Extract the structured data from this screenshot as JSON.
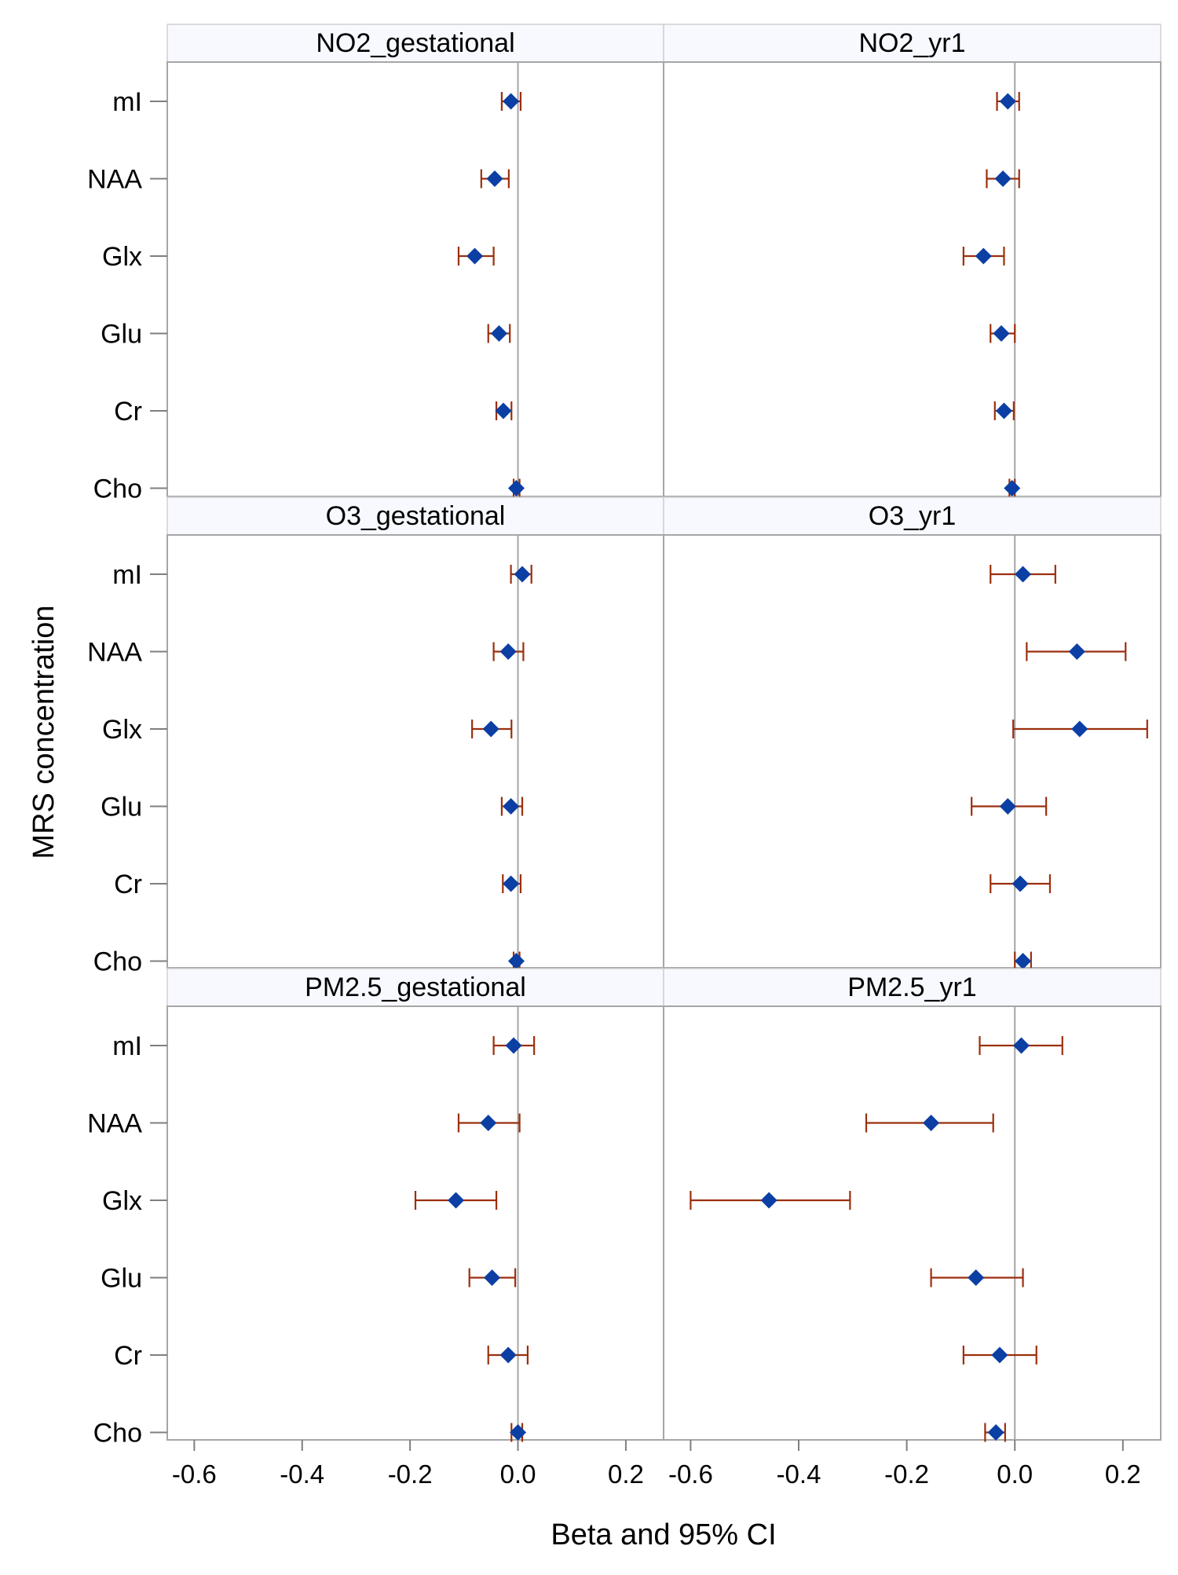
{
  "chart_data": {
    "type": "forest",
    "xlabel": "Beta and 95% CI",
    "ylabel": "MRS concentration",
    "categories": [
      "mI",
      "NAA",
      "Glx",
      "Glu",
      "Cr",
      "Cho"
    ],
    "xlim": [
      -0.65,
      0.27
    ],
    "xticks": [
      -0.6,
      -0.4,
      -0.2,
      0.0,
      0.2
    ],
    "xtick_labels": [
      "-0.6",
      "-0.4",
      "-0.2",
      "0.0",
      "0.2"
    ],
    "reference_line": 0.0,
    "colors": {
      "point": "#0b3fa3",
      "ci": "#9b2f0d",
      "strip": "#f7f9ff",
      "frame": "#a6a6a6",
      "refline": "#a6a6a6"
    },
    "panels": [
      {
        "title": "NO2_gestational",
        "estimates": [
          -0.013,
          -0.043,
          -0.08,
          -0.035,
          -0.027,
          -0.003
        ],
        "lower": [
          -0.03,
          -0.068,
          -0.11,
          -0.055,
          -0.04,
          -0.008
        ],
        "upper": [
          0.005,
          -0.017,
          -0.045,
          -0.015,
          -0.012,
          0.003
        ]
      },
      {
        "title": "NO2_yr1",
        "estimates": [
          -0.013,
          -0.022,
          -0.058,
          -0.025,
          -0.02,
          -0.005
        ],
        "lower": [
          -0.033,
          -0.052,
          -0.095,
          -0.045,
          -0.037,
          -0.01
        ],
        "upper": [
          0.008,
          0.008,
          -0.02,
          0.0,
          -0.002,
          0.0
        ]
      },
      {
        "title": "O3_gestational",
        "estimates": [
          0.008,
          -0.018,
          -0.05,
          -0.013,
          -0.013,
          -0.003
        ],
        "lower": [
          -0.013,
          -0.045,
          -0.085,
          -0.03,
          -0.028,
          -0.008
        ],
        "upper": [
          0.025,
          0.01,
          -0.012,
          0.008,
          0.005,
          0.003
        ]
      },
      {
        "title": "O3_yr1",
        "estimates": [
          0.015,
          0.115,
          0.12,
          -0.013,
          0.01,
          0.015
        ],
        "lower": [
          -0.045,
          0.022,
          -0.003,
          -0.08,
          -0.045,
          0.0
        ],
        "upper": [
          0.075,
          0.205,
          0.245,
          0.058,
          0.065,
          0.03
        ]
      },
      {
        "title": "PM2.5_gestational",
        "estimates": [
          -0.008,
          -0.055,
          -0.115,
          -0.048,
          -0.018,
          0.0
        ],
        "lower": [
          -0.045,
          -0.11,
          -0.19,
          -0.09,
          -0.055,
          -0.012
        ],
        "upper": [
          0.03,
          0.003,
          -0.04,
          -0.005,
          0.018,
          0.008
        ]
      },
      {
        "title": "PM2.5_yr1",
        "estimates": [
          0.012,
          -0.155,
          -0.455,
          -0.072,
          -0.028,
          -0.035
        ],
        "lower": [
          -0.065,
          -0.275,
          -0.6,
          -0.155,
          -0.095,
          -0.055
        ],
        "upper": [
          0.088,
          -0.04,
          -0.305,
          0.015,
          0.04,
          -0.018
        ]
      }
    ]
  }
}
